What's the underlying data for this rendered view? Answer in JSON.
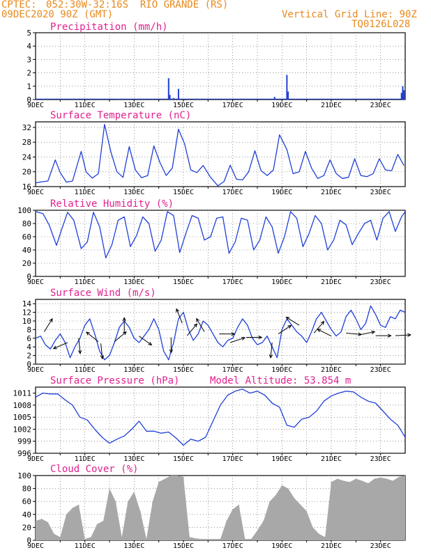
{
  "header": {
    "source": "CPTEC:",
    "location": "052:30W-32:16S  RIO GRANDE (RS)",
    "run": "09DEC2020 90Z (GMT)",
    "grid_note": "Vertical Grid Line: 90Z",
    "model_code": "TQ0126L028"
  },
  "colors": {
    "header": "#e8891d",
    "title": "#e0208f",
    "line": "#1f3fd6",
    "cloud": "#a8a8a8",
    "axis": "#000000",
    "grid": "#555555"
  },
  "chart_data": [
    {
      "id": "precip",
      "type": "bar",
      "title": "Precipitation (mm/h)",
      "ylim": [
        0,
        5
      ],
      "yticks": [
        0,
        1,
        2,
        3,
        4,
        5
      ],
      "x_unit": "days since 09DEC",
      "xticks": [
        {
          "label": "9DEC",
          "x": 0
        },
        {
          "label": "11DEC",
          "x": 2
        },
        {
          "label": "13DEC",
          "x": 4
        },
        {
          "label": "15DEC",
          "x": 6
        },
        {
          "label": "17DEC",
          "x": 8
        },
        {
          "label": "19DEC",
          "x": 10
        },
        {
          "label": "21DEC",
          "x": 12
        },
        {
          "label": "23DEC",
          "x": 14
        }
      ],
      "bars": [
        {
          "x": 0.3,
          "y": 0.05
        },
        {
          "x": 1.0,
          "y": 0.05
        },
        {
          "x": 2.1,
          "y": 0.05
        },
        {
          "x": 3.4,
          "y": 0.05
        },
        {
          "x": 5.4,
          "y": 1.6
        },
        {
          "x": 5.45,
          "y": 0.35
        },
        {
          "x": 5.6,
          "y": 0.12
        },
        {
          "x": 5.8,
          "y": 0.8
        },
        {
          "x": 6.6,
          "y": 0.05
        },
        {
          "x": 9.7,
          "y": 0.2
        },
        {
          "x": 10.2,
          "y": 1.85
        },
        {
          "x": 10.25,
          "y": 0.6
        },
        {
          "x": 12.5,
          "y": 0.05
        },
        {
          "x": 14.85,
          "y": 0.5
        },
        {
          "x": 14.9,
          "y": 1.0
        },
        {
          "x": 14.95,
          "y": 0.7
        }
      ]
    },
    {
      "id": "temp",
      "type": "line",
      "title": "Surface Temperature (nC)",
      "ylim": [
        16,
        33.5
      ],
      "yticks": [
        16,
        20,
        24,
        28,
        32
      ],
      "x_unit": "days since 09DEC",
      "xticks": [
        {
          "label": "9DEC",
          "x": 0
        },
        {
          "label": "11DEC",
          "x": 2
        },
        {
          "label": "13DEC",
          "x": 4
        },
        {
          "label": "15DEC",
          "x": 6
        },
        {
          "label": "17DEC",
          "x": 8
        },
        {
          "label": "19DEC",
          "x": 10
        },
        {
          "label": "21DEC",
          "x": 12
        },
        {
          "label": "23DEC",
          "x": 14
        }
      ],
      "x": [
        0,
        0.25,
        0.5,
        0.8,
        1.0,
        1.25,
        1.5,
        1.85,
        2.05,
        2.3,
        2.55,
        2.8,
        3.05,
        3.3,
        3.55,
        3.8,
        4.05,
        4.3,
        4.55,
        4.8,
        5.05,
        5.3,
        5.55,
        5.8,
        6.05,
        6.3,
        6.55,
        6.8,
        7.1,
        7.4,
        7.65,
        7.9,
        8.15,
        8.4,
        8.65,
        8.9,
        9.15,
        9.4,
        9.65,
        9.9,
        10.2,
        10.45,
        10.7,
        10.95,
        11.2,
        11.45,
        11.7,
        11.95,
        12.2,
        12.45,
        12.7,
        12.95,
        13.2,
        13.45,
        13.7,
        13.95,
        14.2,
        14.45,
        14.7,
        14.95
      ],
      "y": [
        17.0,
        17.3,
        17.5,
        23.2,
        19.8,
        17.2,
        17.5,
        25.5,
        20.0,
        18.3,
        19.5,
        32.8,
        25.5,
        20.0,
        18.5,
        26.8,
        20.5,
        18.4,
        19.0,
        27.0,
        22.5,
        19.0,
        21.0,
        31.5,
        27.5,
        20.5,
        19.8,
        21.7,
        18.5,
        16.2,
        17.4,
        21.8,
        18.0,
        17.8,
        20.0,
        25.7,
        20.3,
        19.0,
        20.5,
        30.0,
        26.0,
        19.5,
        20.0,
        25.5,
        21.0,
        18.2,
        19.0,
        23.2,
        19.5,
        18.2,
        18.5,
        23.5,
        19.0,
        18.7,
        19.5,
        23.5,
        20.5,
        20.3,
        24.7,
        21.7
      ]
    },
    {
      "id": "rh",
      "type": "line",
      "title": "Relative Humidity (%)",
      "ylim": [
        0,
        100
      ],
      "yticks": [
        0,
        20,
        40,
        60,
        80,
        100
      ],
      "x_unit": "days since 09DEC",
      "xticks": [
        {
          "label": "9DEC",
          "x": 0
        },
        {
          "label": "11DEC",
          "x": 2
        },
        {
          "label": "13DEC",
          "x": 4
        },
        {
          "label": "15DEC",
          "x": 6
        },
        {
          "label": "17DEC",
          "x": 8
        },
        {
          "label": "19DEC",
          "x": 10
        },
        {
          "label": "21DEC",
          "x": 12
        },
        {
          "label": "23DEC",
          "x": 14
        }
      ],
      "x": [
        0,
        0.3,
        0.55,
        0.85,
        1.05,
        1.3,
        1.55,
        1.85,
        2.1,
        2.35,
        2.6,
        2.85,
        3.1,
        3.35,
        3.6,
        3.85,
        4.1,
        4.35,
        4.6,
        4.85,
        5.1,
        5.35,
        5.6,
        5.85,
        6.1,
        6.35,
        6.6,
        6.85,
        7.1,
        7.35,
        7.6,
        7.85,
        8.1,
        8.35,
        8.6,
        8.85,
        9.1,
        9.35,
        9.6,
        9.85,
        10.1,
        10.35,
        10.6,
        10.85,
        11.1,
        11.35,
        11.6,
        11.85,
        12.1,
        12.35,
        12.6,
        12.85,
        13.1,
        13.35,
        13.6,
        13.85,
        14.1,
        14.35,
        14.6,
        14.85,
        15.0
      ],
      "y": [
        98,
        95,
        78,
        47,
        70,
        97,
        85,
        42,
        52,
        97,
        75,
        28,
        48,
        85,
        90,
        45,
        62,
        90,
        80,
        38,
        55,
        98,
        92,
        36,
        65,
        92,
        88,
        55,
        60,
        88,
        90,
        35,
        52,
        88,
        85,
        40,
        55,
        90,
        75,
        35,
        60,
        98,
        88,
        45,
        65,
        92,
        80,
        40,
        55,
        85,
        78,
        48,
        65,
        80,
        85,
        55,
        88,
        98,
        68,
        90,
        98
      ]
    },
    {
      "id": "wind",
      "type": "line",
      "title": "Surface Wind (m/s)",
      "ylim": [
        0,
        15
      ],
      "yticks": [
        0,
        2,
        4,
        6,
        8,
        10,
        12,
        14
      ],
      "x_unit": "days since 09DEC",
      "xticks": [
        {
          "label": "9DEC",
          "x": 0
        },
        {
          "label": "11DEC",
          "x": 2
        },
        {
          "label": "13DEC",
          "x": 4
        },
        {
          "label": "15DEC",
          "x": 6
        },
        {
          "label": "17DEC",
          "x": 8
        },
        {
          "label": "19DEC",
          "x": 10
        },
        {
          "label": "21DEC",
          "x": 12
        },
        {
          "label": "23DEC",
          "x": 14
        }
      ],
      "x": [
        0,
        0.2,
        0.4,
        0.6,
        0.8,
        1.0,
        1.2,
        1.4,
        1.6,
        1.8,
        2.0,
        2.2,
        2.4,
        2.6,
        2.8,
        3.0,
        3.2,
        3.4,
        3.6,
        3.8,
        4.0,
        4.2,
        4.4,
        4.6,
        4.8,
        5.0,
        5.2,
        5.4,
        5.6,
        5.8,
        6.0,
        6.2,
        6.4,
        6.6,
        6.8,
        7.0,
        7.2,
        7.4,
        7.6,
        7.8,
        8.0,
        8.2,
        8.4,
        8.6,
        8.8,
        9.0,
        9.2,
        9.4,
        9.6,
        9.8,
        10.0,
        10.2,
        10.4,
        10.6,
        10.8,
        11.0,
        11.2,
        11.4,
        11.6,
        11.8,
        12.0,
        12.2,
        12.4,
        12.6,
        12.8,
        13.0,
        13.2,
        13.4,
        13.6,
        13.8,
        14.0,
        14.2,
        14.4,
        14.6,
        14.8,
        15.0
      ],
      "y": [
        6.0,
        6.5,
        4.5,
        3.5,
        5.5,
        7.0,
        5.0,
        1.5,
        4.0,
        6.0,
        9.0,
        10.5,
        7.0,
        3.0,
        1.0,
        2.0,
        5.0,
        8.5,
        10.0,
        8.5,
        6.0,
        5.0,
        6.5,
        8.0,
        10.5,
        8.0,
        3.0,
        1.0,
        5.0,
        10.5,
        12.0,
        8.0,
        5.5,
        7.0,
        10.0,
        9.0,
        7.0,
        5.0,
        4.0,
        5.5,
        6.0,
        8.5,
        10.5,
        9.0,
        6.0,
        4.5,
        5.0,
        6.5,
        4.0,
        1.5,
        8.0,
        10.5,
        9.0,
        7.5,
        6.5,
        5.0,
        7.5,
        10.5,
        12.0,
        10.0,
        8.0,
        6.5,
        7.5,
        11.0,
        12.5,
        10.5,
        8.0,
        9.5,
        13.5,
        11.5,
        9.0,
        8.5,
        11.0,
        10.5,
        12.5,
        12.0
      ],
      "vectors": [
        {
          "x": 0.35,
          "y": 7.5,
          "u": 0.5,
          "v": 0.8
        },
        {
          "x": 1.3,
          "y": 5.0,
          "u": -0.7,
          "v": -0.3
        },
        {
          "x": 1.75,
          "y": 6.0,
          "u": 0.1,
          "v": -1.0
        },
        {
          "x": 2.55,
          "y": 5.2,
          "u": -0.5,
          "v": 0.4
        },
        {
          "x": 2.65,
          "y": 4.8,
          "u": 0.1,
          "v": -1.0
        },
        {
          "x": 3.2,
          "y": 5.2,
          "u": 0.6,
          "v": 0.5
        },
        {
          "x": 4.2,
          "y": 6.5,
          "u": 0.7,
          "v": -0.5
        },
        {
          "x": 3.6,
          "y": 7.2,
          "u": 0.0,
          "v": 1.0
        },
        {
          "x": 5.5,
          "y": 6.2,
          "u": 0.0,
          "v": -1.0
        },
        {
          "x": 6.15,
          "y": 6.6,
          "u": 0.5,
          "v": 0.6
        },
        {
          "x": 5.95,
          "y": 9.5,
          "u": -0.4,
          "v": 1.0
        },
        {
          "x": 6.85,
          "y": 7.5,
          "u": -0.6,
          "v": 1.0
        },
        {
          "x": 7.45,
          "y": 7.0,
          "u": 1.0,
          "v": 0.0
        },
        {
          "x": 7.9,
          "y": 5.0,
          "u": 0.9,
          "v": 0.3
        },
        {
          "x": 8.55,
          "y": 6.2,
          "u": 0.8,
          "v": 0.0
        },
        {
          "x": 9.6,
          "y": 5.0,
          "u": -0.1,
          "v": -1.0
        },
        {
          "x": 9.85,
          "y": 7.0,
          "u": 0.6,
          "v": 0.4
        },
        {
          "x": 10.7,
          "y": 9.0,
          "u": -0.8,
          "v": 0.5
        },
        {
          "x": 11.3,
          "y": 7.2,
          "u": 0.6,
          "v": 0.7
        },
        {
          "x": 12.0,
          "y": 6.5,
          "u": -0.8,
          "v": 0.4
        },
        {
          "x": 12.6,
          "y": 7.2,
          "u": 1.0,
          "v": -0.1
        },
        {
          "x": 13.15,
          "y": 6.8,
          "u": 1.0,
          "v": 0.2
        },
        {
          "x": 13.8,
          "y": 6.6,
          "u": 1.0,
          "v": 0.0
        },
        {
          "x": 14.6,
          "y": 6.6,
          "u": 1.0,
          "v": 0.05
        }
      ]
    },
    {
      "id": "pres",
      "type": "line",
      "title": "Surface Pressure (hPa)",
      "extra_label": "Model Altitude: 53.854 m",
      "ylim": [
        996,
        1012.5
      ],
      "yticks": [
        996,
        999,
        1002,
        1005,
        1008,
        1011
      ],
      "x_unit": "days since 09DEC",
      "xticks": [
        {
          "label": "9DEC",
          "x": 0
        },
        {
          "label": "11DEC",
          "x": 2
        },
        {
          "label": "13DEC",
          "x": 4
        },
        {
          "label": "15DEC",
          "x": 6
        },
        {
          "label": "17DEC",
          "x": 8
        },
        {
          "label": "19DEC",
          "x": 10
        },
        {
          "label": "21DEC",
          "x": 12
        },
        {
          "label": "23DEC",
          "x": 14
        }
      ],
      "x": [
        0,
        0.3,
        0.6,
        0.9,
        1.2,
        1.5,
        1.8,
        2.1,
        2.4,
        2.7,
        3.0,
        3.3,
        3.6,
        3.9,
        4.2,
        4.5,
        4.8,
        5.1,
        5.4,
        5.7,
        6.0,
        6.3,
        6.6,
        6.9,
        7.2,
        7.5,
        7.8,
        8.1,
        8.4,
        8.7,
        9.0,
        9.3,
        9.6,
        9.9,
        10.2,
        10.5,
        10.8,
        11.1,
        11.4,
        11.7,
        12.0,
        12.3,
        12.6,
        12.9,
        13.2,
        13.5,
        13.8,
        14.1,
        14.4,
        14.7,
        15.0
      ],
      "y": [
        1010.0,
        1011.0,
        1010.8,
        1010.8,
        1009.3,
        1008.0,
        1005.0,
        1004.3,
        1002.0,
        1000.0,
        998.5,
        999.5,
        1000.3,
        1002.0,
        1004.0,
        1001.5,
        1001.5,
        1001.0,
        1001.3,
        999.8,
        998.0,
        999.5,
        999.0,
        1000.0,
        1004.0,
        1008.0,
        1010.5,
        1011.5,
        1012.0,
        1011.0,
        1011.5,
        1010.5,
        1008.5,
        1007.5,
        1003.0,
        1002.5,
        1004.5,
        1005.0,
        1006.5,
        1009.0,
        1010.3,
        1011.0,
        1011.5,
        1011.3,
        1010.0,
        1009.0,
        1008.5,
        1006.5,
        1004.5,
        1003.0,
        1000.0
      ]
    },
    {
      "id": "cloud",
      "type": "bar",
      "title": "Cloud Cover (%)",
      "ylim": [
        0,
        100
      ],
      "yticks": [
        0,
        20,
        40,
        60,
        80,
        100
      ],
      "x_unit": "days since 09DEC",
      "xticks": [
        {
          "label": "9DEC",
          "x": 0
        },
        {
          "label": "11DEC",
          "x": 2
        },
        {
          "label": "13DEC",
          "x": 4
        },
        {
          "label": "15DEC",
          "x": 6
        },
        {
          "label": "17DEC",
          "x": 8
        },
        {
          "label": "19DEC",
          "x": 10
        },
        {
          "label": "21DEC",
          "x": 12
        },
        {
          "label": "23DEC",
          "x": 14
        }
      ],
      "x": [
        0,
        0.25,
        0.5,
        0.75,
        1.0,
        1.25,
        1.5,
        1.75,
        2.0,
        2.25,
        2.5,
        2.75,
        3.0,
        3.25,
        3.5,
        3.75,
        4.0,
        4.25,
        4.5,
        4.75,
        5.0,
        5.25,
        5.5,
        5.75,
        6.0,
        6.25,
        6.5,
        6.75,
        7.0,
        7.25,
        7.5,
        7.75,
        8.0,
        8.25,
        8.5,
        8.75,
        9.0,
        9.25,
        9.5,
        9.75,
        10.0,
        10.25,
        10.5,
        10.75,
        11.0,
        11.25,
        11.5,
        11.75,
        12.0,
        12.25,
        12.5,
        12.75,
        13.0,
        13.25,
        13.5,
        13.75,
        14.0,
        14.25,
        14.5,
        14.75,
        15.0
      ],
      "y": [
        30,
        33,
        28,
        10,
        5,
        40,
        50,
        55,
        2,
        5,
        25,
        30,
        80,
        60,
        5,
        60,
        75,
        45,
        2,
        60,
        90,
        95,
        100,
        100,
        98,
        5,
        3,
        2,
        2,
        2,
        2,
        30,
        48,
        55,
        2,
        2,
        15,
        30,
        60,
        70,
        85,
        80,
        65,
        55,
        45,
        20,
        10,
        5,
        90,
        95,
        92,
        90,
        95,
        92,
        88,
        95,
        97,
        95,
        92,
        98,
        100
      ]
    }
  ]
}
